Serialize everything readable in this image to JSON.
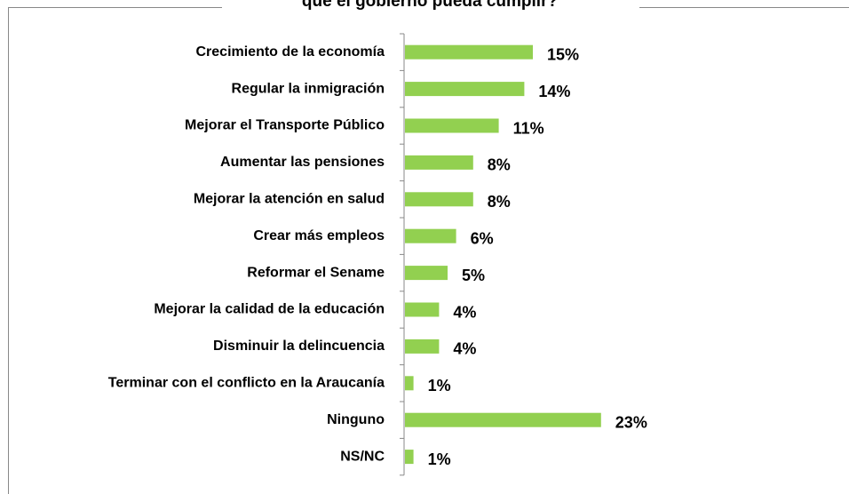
{
  "chart_data": {
    "type": "bar",
    "orientation": "horizontal",
    "title": "que el gobierno pueda cumplir?",
    "categories": [
      "Crecimiento de la economía",
      "Regular la inmigración",
      "Mejorar el Transporte Público",
      "Aumentar las pensiones",
      "Mejorar la atención en salud",
      "Crear más empleos",
      "Reformar el Sename",
      "Mejorar la calidad de la educación",
      "Disminuir la delincuencia",
      "Terminar con el conflicto en la Araucanía",
      "Ninguno",
      "NS/NC"
    ],
    "values": [
      15,
      14,
      11,
      8,
      8,
      6,
      5,
      4,
      4,
      1,
      23,
      1
    ],
    "value_labels": [
      "15%",
      "14%",
      "11%",
      "8%",
      "8%",
      "6%",
      "5%",
      "4%",
      "4%",
      "1%",
      "23%",
      "1%"
    ],
    "color": "#92d050"
  }
}
